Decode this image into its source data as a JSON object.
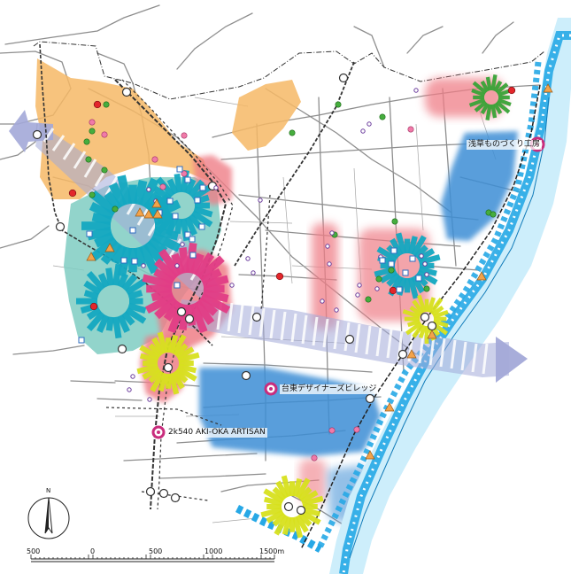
{
  "colors": {
    "river": "#27a7e5",
    "river_glow": "#cfeefb",
    "orange_zone": "#f7b867",
    "teal_zone": "#7ccbc3",
    "pink_zone": "#ee7d86",
    "blue_zone": "#3d8fd6",
    "axis_arrow": "#a3a9d8",
    "burst_teal": "#14a8c1",
    "burst_magenta": "#e23d86",
    "burst_yellow": "#d8e11e",
    "burst_green": "#3aa438",
    "road": "#8d8d8d",
    "rail": "#222222",
    "facility": "#c92d7d"
  },
  "facilities": [
    {
      "name": "浅草ものづくり工房"
    },
    {
      "name": "台東デザイナーズビレッジ"
    },
    {
      "name": "2k540 AKI-OKA ARTISAN"
    }
  ],
  "scale_bar": {
    "ticks": [
      "500",
      "0",
      "500",
      "1000",
      "1500m"
    ]
  },
  "compass": {
    "letter": "N"
  }
}
